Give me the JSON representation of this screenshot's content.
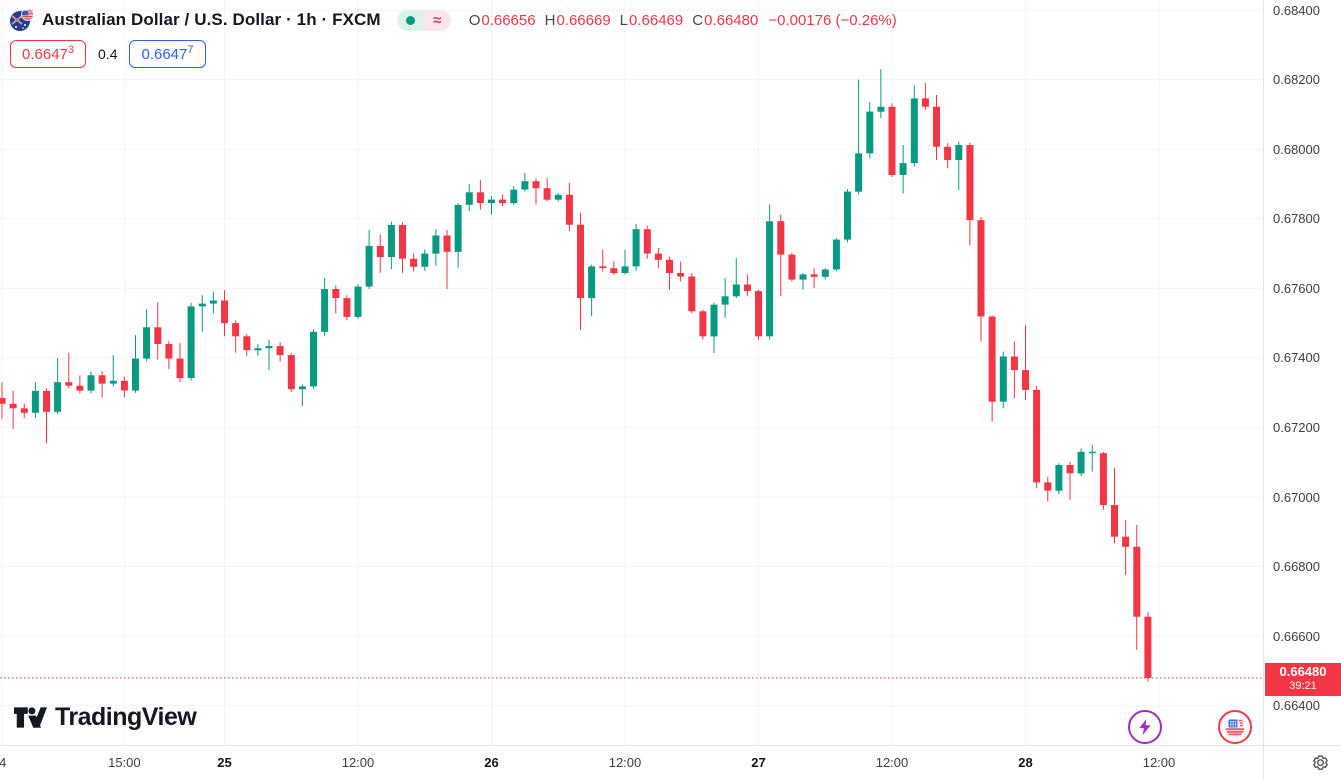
{
  "header": {
    "title": "Australian Dollar / U.S. Dollar · 1h · FXCM",
    "status_dot": "●",
    "status_approx": "≈",
    "bid": {
      "main": "0.6647",
      "sup": "3"
    },
    "spread": "0.4",
    "ask": {
      "main": "0.6647",
      "sup": "7"
    },
    "ohlc": {
      "o_label": "O",
      "o": "0.66656",
      "h_label": "H",
      "h": "0.66669",
      "l_label": "L",
      "l": "0.66469",
      "c_label": "C",
      "c": "0.66480",
      "change": "−0.00176 (−0.26%)"
    }
  },
  "footer": {
    "logo_text": "TradingView"
  },
  "chart_data": {
    "type": "candlestick",
    "title": "Australian Dollar / U.S. Dollar",
    "interval": "1h",
    "exchange": "FXCM",
    "legend": "O, H, L, C of last bar shown in header",
    "ylim": [
      0.66287,
      0.68429
    ],
    "grid": true,
    "colors": {
      "up": "#089981",
      "down": "#F23645",
      "grid": "#F0F3FA",
      "current_line": "#F23645"
    },
    "price_axis": {
      "labels": [
        "0.68400",
        "0.68200",
        "0.68000",
        "0.67800",
        "0.67600",
        "0.67400",
        "0.67200",
        "0.67000",
        "0.66800",
        "0.66600",
        "0.66400"
      ]
    },
    "time_axis": {
      "labels": [
        {
          "i": 0,
          "label": "4",
          "day": false
        },
        {
          "i": 11,
          "label": "15:00",
          "day": false
        },
        {
          "i": 20,
          "label": "25",
          "day": true
        },
        {
          "i": 32,
          "label": "12:00",
          "day": false
        },
        {
          "i": 44,
          "label": "26",
          "day": true
        },
        {
          "i": 56,
          "label": "12:00",
          "day": false
        },
        {
          "i": 68,
          "label": "27",
          "day": true
        },
        {
          "i": 80,
          "label": "12:00",
          "day": false
        },
        {
          "i": 92,
          "label": "28",
          "day": true
        },
        {
          "i": 104,
          "label": "12:00",
          "day": false
        }
      ]
    },
    "current_price": {
      "value": "0.66480",
      "countdown": "39:21",
      "price": 0.6648
    },
    "candles_format": [
      "open",
      "high",
      "low",
      "close"
    ],
    "candles": [
      [
        0.67285,
        0.6733,
        0.67225,
        0.67268
      ],
      [
        0.67268,
        0.67305,
        0.67195,
        0.67255
      ],
      [
        0.67255,
        0.67268,
        0.67226,
        0.67242
      ],
      [
        0.67242,
        0.6733,
        0.67228,
        0.67305
      ],
      [
        0.67305,
        0.67312,
        0.67155,
        0.67245
      ],
      [
        0.67245,
        0.674,
        0.67238,
        0.6733
      ],
      [
        0.6733,
        0.67415,
        0.67312,
        0.6732
      ],
      [
        0.6732,
        0.6735,
        0.67298,
        0.67306
      ],
      [
        0.67306,
        0.6736,
        0.67298,
        0.6735
      ],
      [
        0.6735,
        0.67362,
        0.67286,
        0.67326
      ],
      [
        0.67326,
        0.67408,
        0.67318,
        0.67334
      ],
      [
        0.67334,
        0.67346,
        0.67286,
        0.67306
      ],
      [
        0.67306,
        0.67465,
        0.673,
        0.67398
      ],
      [
        0.67398,
        0.6754,
        0.6739,
        0.67488
      ],
      [
        0.67488,
        0.6756,
        0.67395,
        0.6744
      ],
      [
        0.6744,
        0.67448,
        0.67368,
        0.67398
      ],
      [
        0.67398,
        0.67442,
        0.6733,
        0.67342
      ],
      [
        0.67342,
        0.67558,
        0.67335,
        0.67548
      ],
      [
        0.67548,
        0.6758,
        0.67475,
        0.67556
      ],
      [
        0.67556,
        0.6759,
        0.67528,
        0.67565
      ],
      [
        0.67565,
        0.67595,
        0.67462,
        0.675
      ],
      [
        0.675,
        0.67508,
        0.67415,
        0.67462
      ],
      [
        0.67462,
        0.67468,
        0.67405,
        0.67422
      ],
      [
        0.67422,
        0.6744,
        0.67406,
        0.67428
      ],
      [
        0.67428,
        0.67452,
        0.67365,
        0.67434
      ],
      [
        0.67434,
        0.67445,
        0.6739,
        0.67408
      ],
      [
        0.67408,
        0.67415,
        0.67302,
        0.6731
      ],
      [
        0.6731,
        0.67324,
        0.67261,
        0.67318
      ],
      [
        0.67318,
        0.67482,
        0.67312,
        0.67475
      ],
      [
        0.67475,
        0.6763,
        0.67462,
        0.67598
      ],
      [
        0.67598,
        0.67608,
        0.67528,
        0.67572
      ],
      [
        0.67572,
        0.6758,
        0.67508,
        0.67518
      ],
      [
        0.67518,
        0.67612,
        0.67512,
        0.67605
      ],
      [
        0.67605,
        0.67768,
        0.67598,
        0.67722
      ],
      [
        0.67722,
        0.67755,
        0.67645,
        0.6769
      ],
      [
        0.6769,
        0.67792,
        0.67655,
        0.67782
      ],
      [
        0.67782,
        0.6779,
        0.67645,
        0.67685
      ],
      [
        0.67685,
        0.677,
        0.67648,
        0.67662
      ],
      [
        0.67662,
        0.67712,
        0.6765,
        0.677
      ],
      [
        0.677,
        0.6777,
        0.67665,
        0.67752
      ],
      [
        0.67752,
        0.67768,
        0.67598,
        0.67705
      ],
      [
        0.67705,
        0.67845,
        0.6766,
        0.6784
      ],
      [
        0.6784,
        0.679,
        0.67822,
        0.67876
      ],
      [
        0.67876,
        0.67912,
        0.67826,
        0.67845
      ],
      [
        0.67845,
        0.67865,
        0.67812,
        0.67855
      ],
      [
        0.67855,
        0.6787,
        0.67836,
        0.67845
      ],
      [
        0.67845,
        0.67894,
        0.6784,
        0.67884
      ],
      [
        0.67884,
        0.67932,
        0.67878,
        0.67908
      ],
      [
        0.67908,
        0.67915,
        0.67841,
        0.67888
      ],
      [
        0.67888,
        0.67917,
        0.6785,
        0.67855
      ],
      [
        0.67855,
        0.67874,
        0.6785,
        0.67869
      ],
      [
        0.67869,
        0.67903,
        0.67764,
        0.67783
      ],
      [
        0.67783,
        0.67817,
        0.6748,
        0.67572
      ],
      [
        0.67572,
        0.67668,
        0.6752,
        0.67663
      ],
      [
        0.67663,
        0.67711,
        0.67648,
        0.67658
      ],
      [
        0.67658,
        0.67677,
        0.67639,
        0.67644
      ],
      [
        0.67644,
        0.67711,
        0.6764,
        0.67663
      ],
      [
        0.67663,
        0.67785,
        0.6765,
        0.6777
      ],
      [
        0.6777,
        0.6778,
        0.67685,
        0.677
      ],
      [
        0.677,
        0.67716,
        0.67658,
        0.67682
      ],
      [
        0.67682,
        0.67691,
        0.67596,
        0.67644
      ],
      [
        0.67644,
        0.67677,
        0.6762,
        0.67634
      ],
      [
        0.67634,
        0.67644,
        0.67529,
        0.67534
      ],
      [
        0.67534,
        0.67539,
        0.67453,
        0.67462
      ],
      [
        0.67462,
        0.67558,
        0.67414,
        0.67553
      ],
      [
        0.67553,
        0.6763,
        0.67515,
        0.67577
      ],
      [
        0.67577,
        0.67687,
        0.67572,
        0.67611
      ],
      [
        0.67611,
        0.6764,
        0.67577,
        0.67592
      ],
      [
        0.67592,
        0.67596,
        0.67453,
        0.67462
      ],
      [
        0.67462,
        0.67841,
        0.67453,
        0.67793
      ],
      [
        0.67793,
        0.67812,
        0.67577,
        0.67697
      ],
      [
        0.67697,
        0.67702,
        0.6762,
        0.67625
      ],
      [
        0.67625,
        0.67644,
        0.67596,
        0.6764
      ],
      [
        0.6764,
        0.67658,
        0.67601,
        0.67633
      ],
      [
        0.67633,
        0.67658,
        0.67625,
        0.67654
      ],
      [
        0.67654,
        0.67745,
        0.67649,
        0.6774
      ],
      [
        0.6774,
        0.67885,
        0.67732,
        0.67878
      ],
      [
        0.67878,
        0.682,
        0.6787,
        0.67988
      ],
      [
        0.67988,
        0.68136,
        0.67974,
        0.68108
      ],
      [
        0.68108,
        0.6823,
        0.6809,
        0.68122
      ],
      [
        0.68122,
        0.68132,
        0.6792,
        0.67926
      ],
      [
        0.67926,
        0.68012,
        0.67873,
        0.6796
      ],
      [
        0.6796,
        0.68184,
        0.6795,
        0.68146
      ],
      [
        0.68146,
        0.68191,
        0.68113,
        0.68122
      ],
      [
        0.68122,
        0.68156,
        0.67969,
        0.68007
      ],
      [
        0.68007,
        0.68017,
        0.67945,
        0.67969
      ],
      [
        0.67969,
        0.68022,
        0.67883,
        0.68012
      ],
      [
        0.68012,
        0.68018,
        0.67724,
        0.67796
      ],
      [
        0.67796,
        0.67805,
        0.67447,
        0.67519
      ],
      [
        0.67519,
        0.67522,
        0.67217,
        0.67274
      ],
      [
        0.67274,
        0.67418,
        0.67255,
        0.67404
      ],
      [
        0.67404,
        0.67447,
        0.67284,
        0.67365
      ],
      [
        0.67365,
        0.67495,
        0.67279,
        0.67308
      ],
      [
        0.67308,
        0.67319,
        0.67025,
        0.67042
      ],
      [
        0.67042,
        0.67058,
        0.66987,
        0.67018
      ],
      [
        0.67018,
        0.67097,
        0.67008,
        0.67092
      ],
      [
        0.67092,
        0.67101,
        0.66992,
        0.67068
      ],
      [
        0.67068,
        0.6714,
        0.6706,
        0.6713
      ],
      [
        0.67126,
        0.6715,
        0.67073,
        0.6713
      ],
      [
        0.67126,
        0.6713,
        0.66963,
        0.66977
      ],
      [
        0.66977,
        0.67083,
        0.66867,
        0.66886
      ],
      [
        0.66886,
        0.66934,
        0.66776,
        0.66857
      ],
      [
        0.66857,
        0.6692,
        0.66561,
        0.66656
      ],
      [
        0.66656,
        0.66669,
        0.66469,
        0.6648
      ]
    ]
  }
}
